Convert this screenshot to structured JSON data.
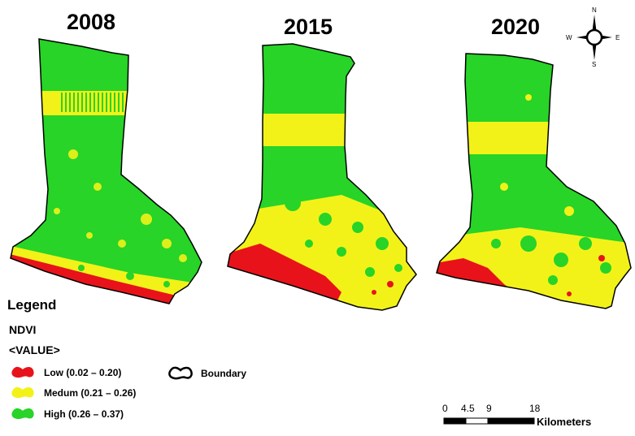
{
  "maps": [
    {
      "year": "2008"
    },
    {
      "year": "2015"
    },
    {
      "year": "2020"
    }
  ],
  "compass": {
    "n": "N",
    "s": "S",
    "e": "E",
    "w": "W"
  },
  "legend": {
    "title": "Legend",
    "variable": "NDVI",
    "value_label": "<VALUE>",
    "classes": [
      {
        "label": "Low (0.02 – 0.20)",
        "color": "#e8131a"
      },
      {
        "label": "Medum (0.21 – 0.26)",
        "color": "#f2f219"
      },
      {
        "label": "High (0.26 – 0.37)",
        "color": "#27d427"
      }
    ],
    "boundary_label": "Boundary"
  },
  "scale_bar": {
    "ticks": [
      "0",
      "4.5",
      "9",
      "18"
    ],
    "unit": "Kilometers"
  }
}
